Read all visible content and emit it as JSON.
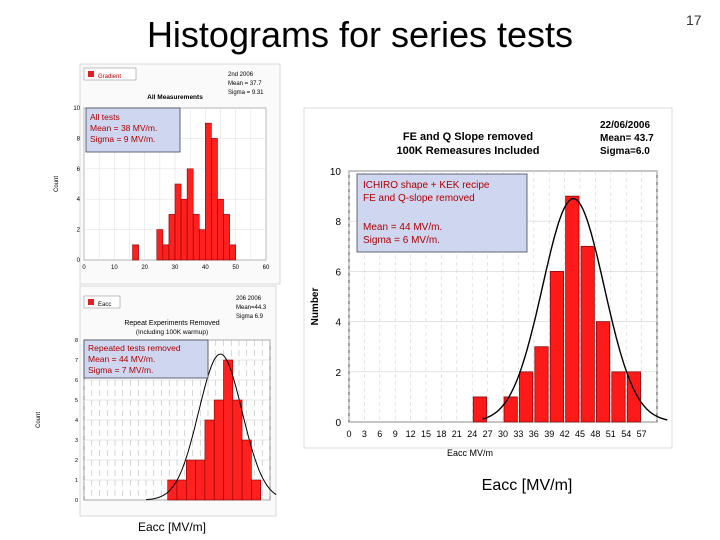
{
  "slide": {
    "title": "Histograms for series tests",
    "page_number": "17"
  },
  "chart_data": [
    {
      "type": "bar",
      "panel": "top-left",
      "header": "All Measurements",
      "legend": "Gradient",
      "stats_header": [
        "2nd 2006",
        "Mean = 37.7",
        "Sigma = 9.31"
      ],
      "annotation": [
        "All tests",
        "Mean = 38 MV/m.",
        "Sigma = 9 MV/m."
      ],
      "xlabel": "Eacc [MV/m]",
      "ylabel": "Count",
      "xlim": [
        0,
        60
      ],
      "ylim": [
        0,
        10
      ],
      "xticks": [
        "0",
        "10",
        "20",
        "30",
        "40",
        "50",
        "60"
      ],
      "yticks": [
        "0",
        "2",
        "4",
        "6",
        "8",
        "10"
      ],
      "bin_width": 2,
      "x": [
        16,
        24,
        26,
        28,
        30,
        32,
        34,
        36,
        38,
        40,
        42,
        44,
        46,
        48
      ],
      "values": [
        1,
        2,
        1,
        3,
        5,
        4,
        6,
        3,
        2,
        9,
        8,
        4,
        3,
        1
      ]
    },
    {
      "type": "bar",
      "panel": "bottom-left",
      "header": [
        "Repeat Experiments Removed",
        "(Including 100K warmup)"
      ],
      "legend": "Eacc",
      "stats_header": [
        "206 2006",
        "Mean=44.3",
        "Sigma 6.9"
      ],
      "annotation": [
        "Repeated tests removed",
        "Mean = 44 MV/m.",
        "Sigma = 7 MV/m."
      ],
      "xlabel": "Eacc [MV/m]",
      "ylabel": "Count",
      "xlim": [
        0,
        60
      ],
      "ylim": [
        0,
        8
      ],
      "yticks": [
        "0",
        "1",
        "2",
        "3",
        "4",
        "5",
        "6",
        "7",
        "8"
      ],
      "bin_width": 3,
      "x": [
        27,
        30,
        33,
        36,
        39,
        42,
        45,
        48,
        51,
        54
      ],
      "values": [
        1,
        1,
        2,
        2,
        4,
        5,
        7,
        5,
        3,
        1
      ],
      "fit": {
        "kind": "gaussian",
        "mean": 44,
        "sigma": 7
      }
    },
    {
      "type": "bar",
      "panel": "right",
      "stats_header_left": [
        "FE and Q Slope removed",
        "100K Remeasures Included"
      ],
      "stats_header_right": [
        "22/06/2006",
        "Mean= 43.7",
        "Sigma=6.0"
      ],
      "annotation": [
        "ICHIRO shape + KEK recipe",
        "FE and Q-slope removed",
        "",
        "Mean = 44 MV/m.",
        "Sigma = 6 MV/m."
      ],
      "xlabel": "Eacc MV/m",
      "xlabel_big": "Eacc [MV/m]",
      "ylabel": "Number",
      "ylim": [
        0,
        10
      ],
      "yticks": [
        "0",
        "2",
        "4",
        "6",
        "8",
        "10"
      ],
      "xticks": [
        "0",
        "3",
        "6",
        "9",
        "12",
        "15",
        "18",
        "21",
        "24",
        "27",
        "30",
        "33",
        "36",
        "39",
        "42",
        "45",
        "48",
        "51",
        "54",
        "57"
      ],
      "bin_width": 3,
      "x": [
        24,
        30,
        33,
        36,
        39,
        42,
        45,
        48,
        51,
        54
      ],
      "values": [
        1,
        1,
        2,
        3,
        6,
        9,
        7,
        4,
        2,
        2
      ],
      "fit": {
        "kind": "gaussian",
        "mean": 43.7,
        "sigma": 6.0
      }
    }
  ]
}
